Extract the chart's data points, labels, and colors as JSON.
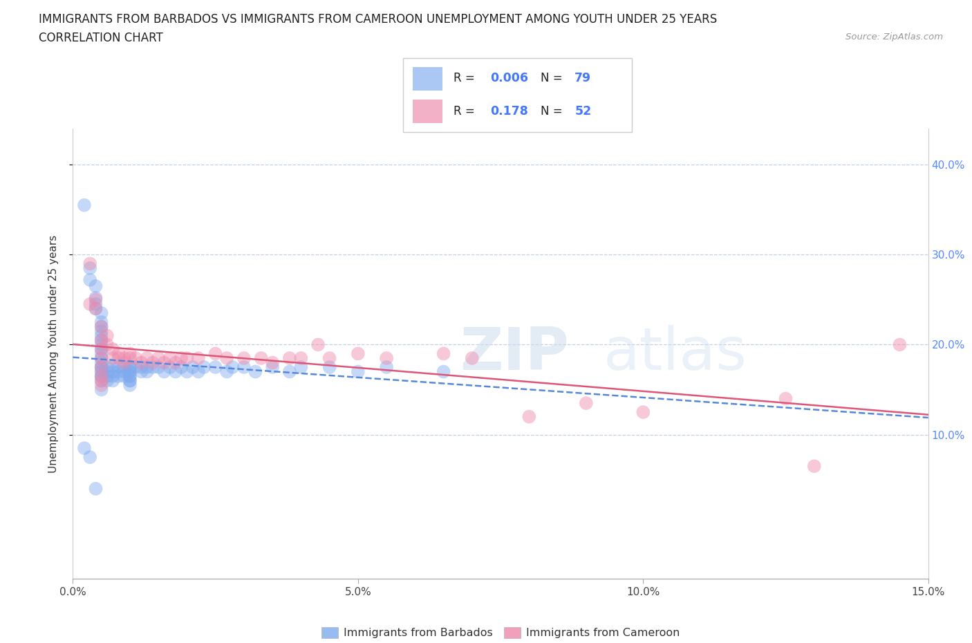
{
  "title_line1": "IMMIGRANTS FROM BARBADOS VS IMMIGRANTS FROM CAMEROON UNEMPLOYMENT AMONG YOUTH UNDER 25 YEARS",
  "title_line2": "CORRELATION CHART",
  "source_text": "Source: ZipAtlas.com",
  "ylabel": "Unemployment Among Youth under 25 years",
  "legend_label1": "Immigrants from Barbados",
  "legend_label2": "Immigrants from Cameroon",
  "R1": "0.006",
  "N1": "79",
  "R2": "0.178",
  "N2": "52",
  "color_barbados": "#7FAAEE",
  "color_cameroon": "#EE88AA",
  "color_barbados_line": "#5588DD",
  "color_cameroon_line": "#DD5577",
  "xlim": [
    0.0,
    0.15
  ],
  "ylim": [
    -0.06,
    0.44
  ],
  "xticks": [
    0.0,
    0.05,
    0.1,
    0.15
  ],
  "yticks": [
    0.1,
    0.2,
    0.3,
    0.4
  ],
  "watermark_top": "ZIP",
  "watermark_bot": "atlas",
  "barbados_x": [
    0.002,
    0.003,
    0.003,
    0.004,
    0.004,
    0.004,
    0.004,
    0.005,
    0.005,
    0.005,
    0.005,
    0.005,
    0.005,
    0.005,
    0.005,
    0.005,
    0.005,
    0.005,
    0.005,
    0.005,
    0.005,
    0.005,
    0.005,
    0.005,
    0.005,
    0.005,
    0.006,
    0.006,
    0.006,
    0.006,
    0.007,
    0.007,
    0.007,
    0.007,
    0.008,
    0.008,
    0.008,
    0.009,
    0.009,
    0.009,
    0.01,
    0.01,
    0.01,
    0.01,
    0.01,
    0.01,
    0.01,
    0.01,
    0.01,
    0.011,
    0.012,
    0.012,
    0.013,
    0.013,
    0.014,
    0.015,
    0.016,
    0.017,
    0.018,
    0.019,
    0.02,
    0.021,
    0.022,
    0.023,
    0.025,
    0.027,
    0.028,
    0.03,
    0.032,
    0.035,
    0.038,
    0.04,
    0.045,
    0.05,
    0.055,
    0.065,
    0.002,
    0.003,
    0.004
  ],
  "barbados_y": [
    0.355,
    0.285,
    0.272,
    0.265,
    0.252,
    0.245,
    0.24,
    0.235,
    0.225,
    0.22,
    0.215,
    0.21,
    0.205,
    0.2,
    0.195,
    0.19,
    0.185,
    0.175,
    0.17,
    0.165,
    0.16,
    0.15,
    0.18,
    0.175,
    0.17,
    0.165,
    0.175,
    0.17,
    0.165,
    0.16,
    0.175,
    0.17,
    0.165,
    0.16,
    0.175,
    0.17,
    0.165,
    0.175,
    0.17,
    0.165,
    0.175,
    0.17,
    0.165,
    0.16,
    0.155,
    0.175,
    0.17,
    0.165,
    0.16,
    0.175,
    0.175,
    0.17,
    0.175,
    0.17,
    0.175,
    0.175,
    0.17,
    0.175,
    0.17,
    0.175,
    0.17,
    0.175,
    0.17,
    0.175,
    0.175,
    0.17,
    0.175,
    0.175,
    0.17,
    0.175,
    0.17,
    0.175,
    0.175,
    0.17,
    0.175,
    0.17,
    0.085,
    0.075,
    0.04
  ],
  "cameroon_x": [
    0.003,
    0.003,
    0.004,
    0.004,
    0.005,
    0.005,
    0.005,
    0.005,
    0.005,
    0.005,
    0.005,
    0.005,
    0.006,
    0.006,
    0.007,
    0.007,
    0.008,
    0.008,
    0.009,
    0.009,
    0.01,
    0.01,
    0.011,
    0.012,
    0.013,
    0.014,
    0.015,
    0.016,
    0.017,
    0.018,
    0.019,
    0.02,
    0.022,
    0.025,
    0.027,
    0.03,
    0.033,
    0.035,
    0.038,
    0.04,
    0.043,
    0.045,
    0.05,
    0.055,
    0.065,
    0.07,
    0.08,
    0.09,
    0.1,
    0.125,
    0.13,
    0.145
  ],
  "cameroon_y": [
    0.29,
    0.245,
    0.25,
    0.24,
    0.22,
    0.205,
    0.195,
    0.185,
    0.175,
    0.165,
    0.16,
    0.155,
    0.21,
    0.2,
    0.195,
    0.185,
    0.19,
    0.185,
    0.185,
    0.18,
    0.19,
    0.185,
    0.185,
    0.18,
    0.185,
    0.18,
    0.185,
    0.18,
    0.185,
    0.18,
    0.185,
    0.185,
    0.185,
    0.19,
    0.185,
    0.185,
    0.185,
    0.18,
    0.185,
    0.185,
    0.2,
    0.185,
    0.19,
    0.185,
    0.19,
    0.185,
    0.12,
    0.135,
    0.125,
    0.14,
    0.065,
    0.2
  ]
}
